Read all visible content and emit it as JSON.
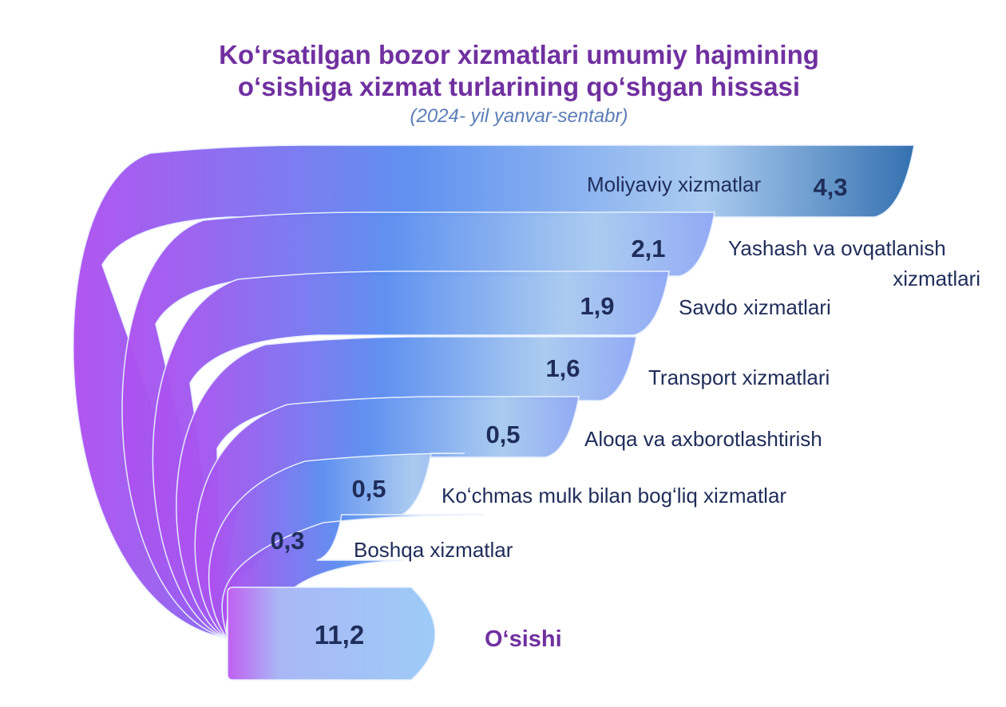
{
  "header": {
    "title_line1": "Koʻrsatilgan bozor xizmatlari umumiy hajmining",
    "title_line2": "oʻsishiga xizmat turlarining qoʻshgan hissasi",
    "subtitle": "(2024- yil yanvar-sentabr)"
  },
  "chart_data": {
    "type": "bar",
    "orientation": "horizontal-stacked-fan",
    "categories": [
      "Moliyaviy xizmatlar",
      "Yashash va ovqatlanish xizmatlari",
      "Savdo xizmatlari",
      "Transport xizmatlari",
      "Aloqa va axborotlashtirish",
      "Koʻchmas mulk bilan bogʻliq xizmatlar",
      "Boshqa xizmatlar"
    ],
    "values": [
      "4,3",
      "2,1",
      "1,9",
      "1,6",
      "0,5",
      "0,5",
      "0,3"
    ],
    "numeric_values": [
      4.3,
      2.1,
      1.9,
      1.6,
      0.5,
      0.5,
      0.3
    ],
    "total": {
      "label": "Oʻsishi",
      "value": "11,2",
      "numeric_value": 11.2
    },
    "colors": {
      "title": "#7030A0",
      "subtitle": "#5B7DB8",
      "value_text": "#1F2D5A",
      "label_text": "#1F2D5A",
      "total_label": "#7030A0",
      "band_light": "#A9CBF0",
      "band_blue": "#5B8EF0",
      "band_purple": "#B050F0",
      "band_dark": "#2E6DAE"
    }
  }
}
